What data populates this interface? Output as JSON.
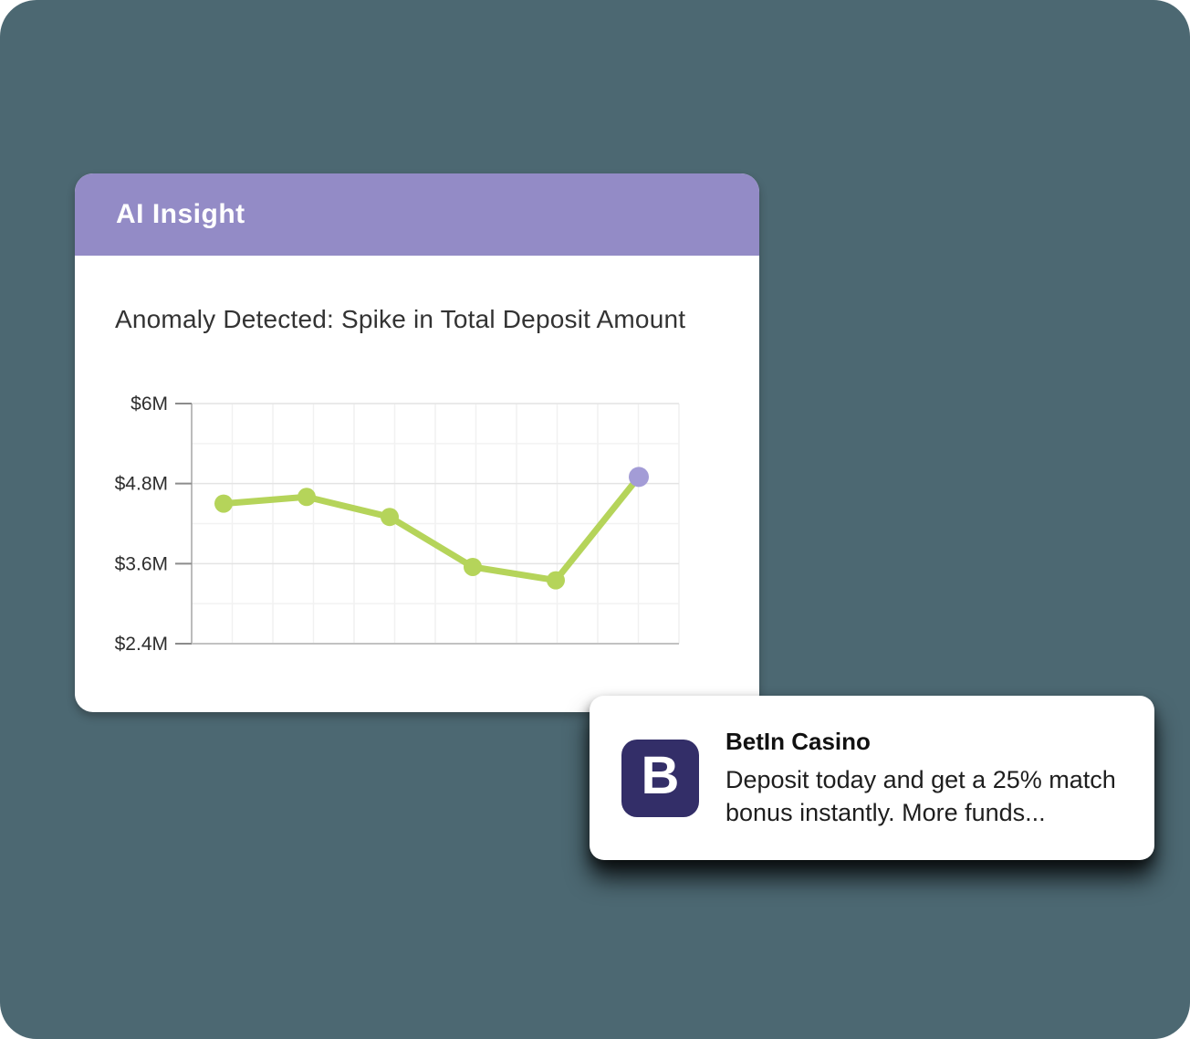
{
  "background_color": "#4c6872",
  "insight_card": {
    "header": {
      "title": "AI Insight",
      "bg_color": "#938bc6",
      "text_color": "#ffffff"
    },
    "title": "Anomaly Detected: Spike in Total Deposit Amount"
  },
  "chart_data": {
    "type": "line",
    "title": "Anomaly Detected: Spike in Total Deposit Amount",
    "series": [
      {
        "name": "Total Deposit Amount",
        "values": [
          4.5,
          4.6,
          4.3,
          3.55,
          3.35,
          4.9
        ]
      }
    ],
    "unit": "$M",
    "y_ticks": [
      "$6M",
      "$4.8M",
      "$3.6M",
      "$2.4M"
    ],
    "y_tick_values": [
      6,
      4.8,
      3.6,
      2.4
    ],
    "ylim": [
      2.4,
      6
    ],
    "xlabel": "",
    "ylabel": "",
    "x_tick_labels_visible": false,
    "grid": true,
    "legend": false,
    "line_color": "#b5d45a",
    "point_color": "#b5d45a",
    "anomaly_point_index": 5,
    "anomaly_point_color": "#a39cd6",
    "anomaly_value": 4.9
  },
  "notification_card": {
    "logo": {
      "letter": "B",
      "bg_color": "#332e68"
    },
    "title": "BetIn Casino",
    "body": "Deposit today and get a 25% match bonus instantly. More funds..."
  }
}
